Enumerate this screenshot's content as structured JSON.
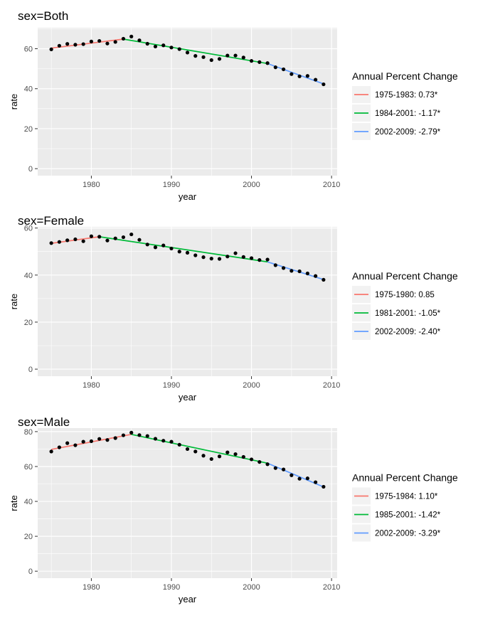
{
  "chart_data": [
    {
      "type": "scatter",
      "title": "sex=Both",
      "xlabel": "year",
      "ylabel": "rate",
      "xlim": [
        1973.3,
        2010.7
      ],
      "ylim": [
        -3.5,
        70.5
      ],
      "xticks": [
        1980,
        1990,
        2000,
        2010
      ],
      "yticks": [
        0,
        20,
        40,
        60
      ],
      "grid": true,
      "legend_title": "Annual Percent Change",
      "legend_position": "right",
      "x": [
        1975,
        1976,
        1977,
        1978,
        1979,
        1980,
        1981,
        1982,
        1983,
        1984,
        1985,
        1986,
        1987,
        1988,
        1989,
        1990,
        1991,
        1992,
        1993,
        1994,
        1995,
        1996,
        1997,
        1998,
        1999,
        2000,
        2001,
        2002,
        2003,
        2004,
        2005,
        2006,
        2007,
        2008,
        2009
      ],
      "y": [
        59.7,
        61.5,
        62.4,
        62.0,
        62.3,
        63.6,
        63.9,
        62.6,
        63.4,
        65.0,
        66.1,
        64.2,
        62.5,
        61.1,
        61.7,
        60.6,
        59.8,
        58.1,
        56.4,
        55.8,
        54.3,
        54.9,
        56.6,
        56.6,
        55.6,
        53.9,
        53.3,
        52.8,
        50.7,
        49.7,
        47.3,
        46.2,
        46.4,
        44.5,
        42.2
      ],
      "series": [
        {
          "name": "1975-1983: 0.73*",
          "color": "#F8766D",
          "x": [
            1975,
            1984
          ],
          "y": [
            60.3,
            64.8
          ]
        },
        {
          "name": "1984-2001: -1.17*",
          "color": "#00BA38",
          "x": [
            1984,
            2002
          ],
          "y": [
            64.8,
            52.6
          ]
        },
        {
          "name": "2002-2009: -2.79*",
          "color": "#619CFF",
          "x": [
            2002,
            2009
          ],
          "y": [
            52.6,
            42.4
          ]
        }
      ]
    },
    {
      "type": "scatter",
      "title": "sex=Female",
      "xlabel": "year",
      "ylabel": "rate",
      "xlim": [
        1973.3,
        2010.7
      ],
      "ylim": [
        -3.0,
        60.5
      ],
      "xticks": [
        1980,
        1990,
        2000,
        2010
      ],
      "yticks": [
        0,
        20,
        40,
        60
      ],
      "grid": true,
      "legend_title": "Annual Percent Change",
      "legend_position": "right",
      "x": [
        1975,
        1976,
        1977,
        1978,
        1979,
        1980,
        1981,
        1982,
        1983,
        1984,
        1985,
        1986,
        1987,
        1988,
        1989,
        1990,
        1991,
        1992,
        1993,
        1994,
        1995,
        1996,
        1997,
        1998,
        1999,
        2000,
        2001,
        2002,
        2003,
        2004,
        2005,
        2006,
        2007,
        2008,
        2009
      ],
      "y": [
        53.6,
        54.1,
        54.8,
        55.2,
        54.4,
        56.5,
        56.3,
        54.7,
        55.6,
        56.1,
        57.3,
        55.0,
        53.0,
        51.8,
        52.6,
        51.3,
        50.0,
        49.5,
        48.4,
        47.6,
        47.0,
        46.9,
        47.9,
        49.3,
        47.7,
        47.2,
        46.4,
        46.6,
        44.2,
        43.0,
        41.8,
        41.6,
        40.7,
        39.6,
        38.0
      ],
      "series": [
        {
          "name": "1975-1980: 0.85",
          "color": "#F8766D",
          "x": [
            1975,
            1981
          ],
          "y": [
            53.5,
            56.3
          ]
        },
        {
          "name": "1981-2001: -1.05*",
          "color": "#00BA38",
          "x": [
            1981,
            2002
          ],
          "y": [
            56.3,
            45.6
          ]
        },
        {
          "name": "2002-2009: -2.40*",
          "color": "#619CFF",
          "x": [
            2002,
            2009
          ],
          "y": [
            45.6,
            38.1
          ]
        }
      ]
    },
    {
      "type": "scatter",
      "title": "sex=Male",
      "xlabel": "year",
      "ylabel": "rate",
      "xlim": [
        1973.3,
        2010.7
      ],
      "ylim": [
        -4.0,
        82.0
      ],
      "xticks": [
        1980,
        1990,
        2000,
        2010
      ],
      "yticks": [
        0,
        20,
        40,
        60,
        80
      ],
      "grid": true,
      "legend_title": "Annual Percent Change",
      "legend_position": "right",
      "x": [
        1975,
        1976,
        1977,
        1978,
        1979,
        1980,
        1981,
        1982,
        1983,
        1984,
        1985,
        1986,
        1987,
        1988,
        1989,
        1990,
        1991,
        1992,
        1993,
        1994,
        1995,
        1996,
        1997,
        1998,
        1999,
        2000,
        2001,
        2002,
        2003,
        2004,
        2005,
        2006,
        2007,
        2008,
        2009
      ],
      "y": [
        68.6,
        71.0,
        73.4,
        72.2,
        74.2,
        74.5,
        75.8,
        75.2,
        76.3,
        77.9,
        79.4,
        78.0,
        77.5,
        75.9,
        74.8,
        74.2,
        72.5,
        70.0,
        68.6,
        66.2,
        64.3,
        65.8,
        68.1,
        67.1,
        65.5,
        64.1,
        62.6,
        61.3,
        59.1,
        58.3,
        55.0,
        53.0,
        53.2,
        51.0,
        48.4
      ],
      "series": [
        {
          "name": "1975-1984: 1.10*",
          "color": "#F8766D",
          "x": [
            1975,
            1985
          ],
          "y": [
            69.8,
            78.4
          ]
        },
        {
          "name": "1985-2001: -1.42*",
          "color": "#00BA38",
          "x": [
            1985,
            2002
          ],
          "y": [
            78.4,
            61.9
          ]
        },
        {
          "name": "2002-2009: -3.29*",
          "color": "#619CFF",
          "x": [
            2002,
            2009
          ],
          "y": [
            61.9,
            48.3
          ]
        }
      ]
    }
  ]
}
